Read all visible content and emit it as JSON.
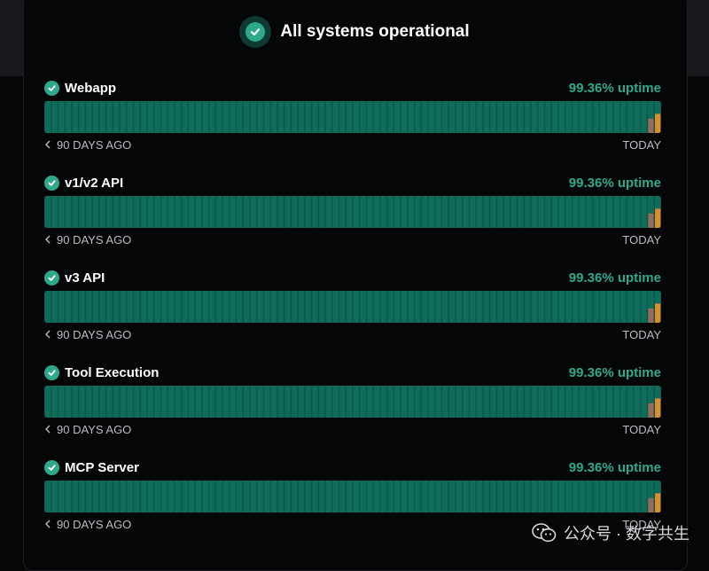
{
  "status": {
    "title": "All systems operational",
    "color": "#2fa98c"
  },
  "services": [
    {
      "name": "Webapp",
      "uptime": "99.36% uptime"
    },
    {
      "name": "v1/v2 API",
      "uptime": "99.36% uptime"
    },
    {
      "name": "v3 API",
      "uptime": "99.36% uptime"
    },
    {
      "name": "Tool Execution",
      "uptime": "99.36% uptime"
    },
    {
      "name": "MCP Server",
      "uptime": "99.36% uptime"
    }
  ],
  "range": {
    "start_label": "90 DAYS AGO",
    "end_label": "TODAY",
    "days": 90
  },
  "colors": {
    "operational": "#0f6b5a",
    "degraded": "#e08a2c",
    "minor": "#9a6b5a"
  },
  "recent_days": [
    {
      "day": 88,
      "status": "minor",
      "fraction": 0.45
    },
    {
      "day": 89,
      "status": "degraded",
      "fraction": 0.6
    }
  ],
  "watermark": {
    "text": "公众号 · 数字共生",
    "icon": "wechat-icon"
  }
}
